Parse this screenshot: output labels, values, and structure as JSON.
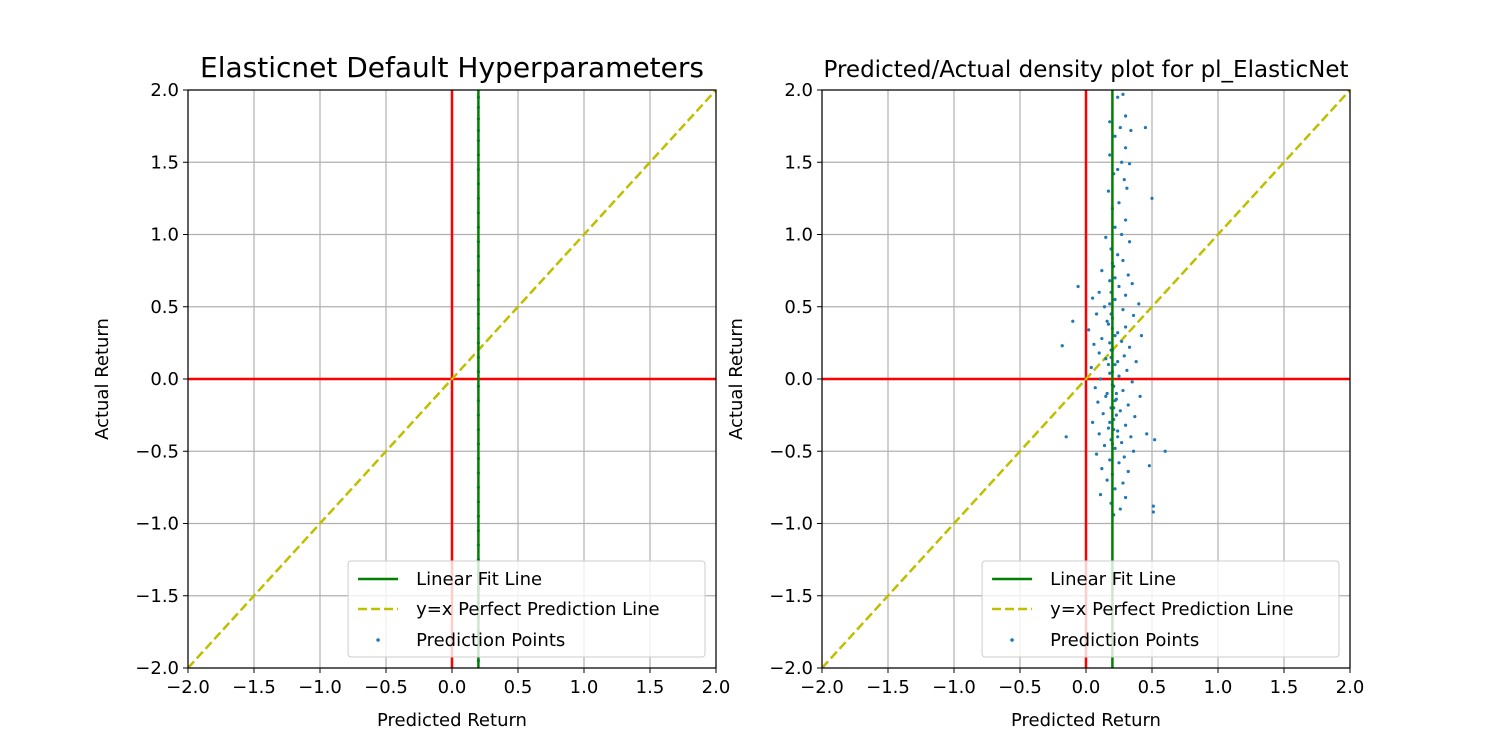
{
  "colors": {
    "linear_fit": "#008000",
    "perfect_line": "#bfbf00",
    "points": "#1f77b4",
    "zero_lines": "#ff0000",
    "grid": "#b0b0b0"
  },
  "chart_data": [
    {
      "type": "scatter",
      "title": "Elasticnet Default Hyperparameters",
      "xlabel": "Predicted Return",
      "ylabel": "Actual Return",
      "xlim": [
        -2.0,
        2.0
      ],
      "ylim": [
        -2.0,
        2.0
      ],
      "xticks": [
        "−2.0",
        "−1.5",
        "−1.0",
        "−0.5",
        "0.0",
        "0.5",
        "1.0",
        "1.5",
        "2.0"
      ],
      "yticks": [
        "−2.0",
        "−1.5",
        "−1.0",
        "−0.5",
        "0.0",
        "0.5",
        "1.0",
        "1.5",
        "2.0"
      ],
      "grid": true,
      "legend_position": "lower-right",
      "legend": [
        "Linear Fit Line",
        "y=x Perfect Prediction Line",
        "Prediction Points"
      ],
      "linear_fit_x": 0.2,
      "reference_lines": {
        "vertical_x": 0.0,
        "horizontal_y": 0.0
      },
      "points": [
        [
          0.2,
          1.95
        ],
        [
          0.2,
          1.88
        ],
        [
          0.2,
          1.8
        ],
        [
          0.2,
          1.72
        ],
        [
          0.2,
          1.65
        ],
        [
          0.2,
          1.55
        ],
        [
          0.2,
          1.45
        ],
        [
          0.2,
          1.35
        ],
        [
          0.2,
          1.25
        ],
        [
          0.2,
          1.15
        ],
        [
          0.2,
          1.05
        ],
        [
          0.2,
          0.95
        ],
        [
          0.2,
          0.85
        ],
        [
          0.2,
          0.75
        ],
        [
          0.2,
          0.65
        ],
        [
          0.2,
          0.55
        ],
        [
          0.2,
          0.45
        ],
        [
          0.2,
          0.35
        ],
        [
          0.2,
          0.25
        ],
        [
          0.2,
          0.15
        ],
        [
          0.2,
          0.05
        ],
        [
          0.2,
          -0.05
        ],
        [
          0.2,
          -0.15
        ],
        [
          0.2,
          -0.25
        ],
        [
          0.2,
          -0.35
        ],
        [
          0.2,
          -0.45
        ],
        [
          0.2,
          -0.55
        ],
        [
          0.2,
          -0.65
        ],
        [
          0.2,
          -0.75
        ],
        [
          0.2,
          -0.85
        ],
        [
          0.2,
          -0.95
        ],
        [
          0.2,
          -1.05
        ],
        [
          0.2,
          -1.15
        ],
        [
          0.2,
          -1.25
        ],
        [
          0.2,
          -1.35
        ],
        [
          0.2,
          -1.45
        ],
        [
          0.2,
          -1.55
        ],
        [
          0.2,
          -1.65
        ],
        [
          0.2,
          -1.75
        ],
        [
          0.2,
          -1.85
        ],
        [
          0.2,
          -1.95
        ]
      ]
    },
    {
      "type": "scatter",
      "title": "Predicted/Actual density plot for pl_ElasticNet",
      "xlabel": "Predicted Return",
      "ylabel": "Actual Return",
      "xlim": [
        -2.0,
        2.0
      ],
      "ylim": [
        -2.0,
        2.0
      ],
      "xticks": [
        "−2.0",
        "−1.5",
        "−1.0",
        "−0.5",
        "0.0",
        "0.5",
        "1.0",
        "1.5",
        "2.0"
      ],
      "yticks": [
        "−2.0",
        "−1.5",
        "−1.0",
        "−0.5",
        "0.0",
        "0.5",
        "1.0",
        "1.5",
        "2.0"
      ],
      "grid": true,
      "legend_position": "lower-right",
      "legend": [
        "Linear Fit Line",
        "y=x Perfect Prediction Line",
        "Prediction Points"
      ],
      "linear_fit_x": 0.2,
      "reference_lines": {
        "vertical_x": 0.0,
        "horizontal_y": 0.0
      },
      "points": [
        [
          0.24,
          1.95
        ],
        [
          0.28,
          1.97
        ],
        [
          0.3,
          1.82
        ],
        [
          0.18,
          1.78
        ],
        [
          0.26,
          1.74
        ],
        [
          0.45,
          1.74
        ],
        [
          0.34,
          1.72
        ],
        [
          0.22,
          1.68
        ],
        [
          0.3,
          1.6
        ],
        [
          0.18,
          1.55
        ],
        [
          0.27,
          1.5
        ],
        [
          0.33,
          1.49
        ],
        [
          0.24,
          1.45
        ],
        [
          0.21,
          1.42
        ],
        [
          0.29,
          1.38
        ],
        [
          0.31,
          1.32
        ],
        [
          0.17,
          1.3
        ],
        [
          0.5,
          1.25
        ],
        [
          0.25,
          1.22
        ],
        [
          0.2,
          1.18
        ],
        [
          0.3,
          1.1
        ],
        [
          0.22,
          1.05
        ],
        [
          0.27,
          1.0
        ],
        [
          0.15,
          0.98
        ],
        [
          0.33,
          0.95
        ],
        [
          0.19,
          0.9
        ],
        [
          0.24,
          0.86
        ],
        [
          0.28,
          0.82
        ],
        [
          0.21,
          0.78
        ],
        [
          0.12,
          0.75
        ],
        [
          0.32,
          0.72
        ],
        [
          0.18,
          0.68
        ],
        [
          0.35,
          0.66
        ],
        [
          0.25,
          0.64
        ],
        [
          -0.06,
          0.64
        ],
        [
          0.1,
          0.6
        ],
        [
          0.3,
          0.58
        ],
        [
          0.05,
          0.56
        ],
        [
          0.22,
          0.55
        ],
        [
          0.4,
          0.52
        ],
        [
          0.14,
          0.5
        ],
        [
          0.28,
          0.48
        ],
        [
          0.08,
          0.45
        ],
        [
          0.36,
          0.44
        ],
        [
          0.2,
          0.42
        ],
        [
          -0.1,
          0.4
        ],
        [
          0.17,
          0.38
        ],
        [
          0.3,
          0.36
        ],
        [
          0.02,
          0.34
        ],
        [
          0.24,
          0.32
        ],
        [
          0.42,
          0.3
        ],
        [
          0.12,
          0.28
        ],
        [
          0.27,
          0.26
        ],
        [
          0.06,
          0.24
        ],
        [
          -0.18,
          0.23
        ],
        [
          0.33,
          0.22
        ],
        [
          0.19,
          0.2
        ],
        [
          0.1,
          0.18
        ],
        [
          0.29,
          0.16
        ],
        [
          0.15,
          0.14
        ],
        [
          0.38,
          0.12
        ],
        [
          0.22,
          0.1
        ],
        [
          0.04,
          0.08
        ],
        [
          0.31,
          0.06
        ],
        [
          0.18,
          0.04
        ],
        [
          0.25,
          0.02
        ],
        [
          0.11,
          0.0
        ],
        [
          0.35,
          -0.02
        ],
        [
          0.2,
          -0.04
        ],
        [
          0.07,
          -0.06
        ],
        [
          0.28,
          -0.08
        ],
        [
          0.16,
          -0.1
        ],
        [
          0.41,
          -0.12
        ],
        [
          0.23,
          -0.14
        ],
        [
          0.09,
          -0.16
        ],
        [
          0.32,
          -0.18
        ],
        [
          0.19,
          -0.2
        ],
        [
          0.26,
          -0.22
        ],
        [
          0.13,
          -0.24
        ],
        [
          0.37,
          -0.26
        ],
        [
          0.21,
          -0.28
        ],
        [
          0.05,
          -0.3
        ],
        [
          0.3,
          -0.32
        ],
        [
          0.17,
          -0.34
        ],
        [
          0.24,
          -0.36
        ],
        [
          0.1,
          -0.38
        ],
        [
          0.46,
          -0.38
        ],
        [
          -0.15,
          -0.4
        ],
        [
          0.34,
          -0.4
        ],
        [
          0.19,
          -0.42
        ],
        [
          0.52,
          -0.42
        ],
        [
          0.27,
          -0.44
        ],
        [
          0.14,
          -0.46
        ],
        [
          0.6,
          -0.5
        ],
        [
          0.22,
          -0.48
        ],
        [
          0.36,
          -0.5
        ],
        [
          0.08,
          -0.52
        ],
        [
          0.29,
          -0.54
        ],
        [
          0.18,
          -0.56
        ],
        [
          0.48,
          -0.6
        ],
        [
          0.25,
          -0.58
        ],
        [
          0.12,
          -0.62
        ],
        [
          0.32,
          -0.64
        ],
        [
          0.2,
          -0.66
        ],
        [
          0.16,
          -0.7
        ],
        [
          0.28,
          -0.72
        ],
        [
          0.22,
          -0.76
        ],
        [
          0.11,
          -0.8
        ],
        [
          0.3,
          -0.82
        ],
        [
          0.19,
          -0.86
        ],
        [
          0.51,
          -0.88
        ],
        [
          0.26,
          -0.9
        ],
        [
          0.51,
          -0.92
        ],
        [
          0.21,
          -0.94
        ],
        [
          0.2,
          0.05
        ],
        [
          0.21,
          -0.05
        ],
        [
          0.19,
          0.15
        ],
        [
          0.22,
          -0.15
        ],
        [
          0.18,
          0.25
        ],
        [
          0.23,
          -0.25
        ],
        [
          0.2,
          0.35
        ],
        [
          0.21,
          -0.35
        ],
        [
          0.19,
          0.45
        ],
        [
          0.2,
          -0.45
        ],
        [
          0.22,
          0.3
        ],
        [
          0.18,
          -0.3
        ],
        [
          0.17,
          0.1
        ],
        [
          0.23,
          -0.1
        ],
        [
          0.2,
          0.2
        ],
        [
          0.21,
          -0.2
        ],
        [
          0.16,
          0.4
        ],
        [
          0.24,
          -0.4
        ],
        [
          0.19,
          0.6
        ],
        [
          0.22,
          0.7
        ],
        [
          0.2,
          0.8
        ],
        [
          0.18,
          0.52
        ],
        [
          0.24,
          0.12
        ],
        [
          0.15,
          -0.12
        ]
      ]
    }
  ]
}
